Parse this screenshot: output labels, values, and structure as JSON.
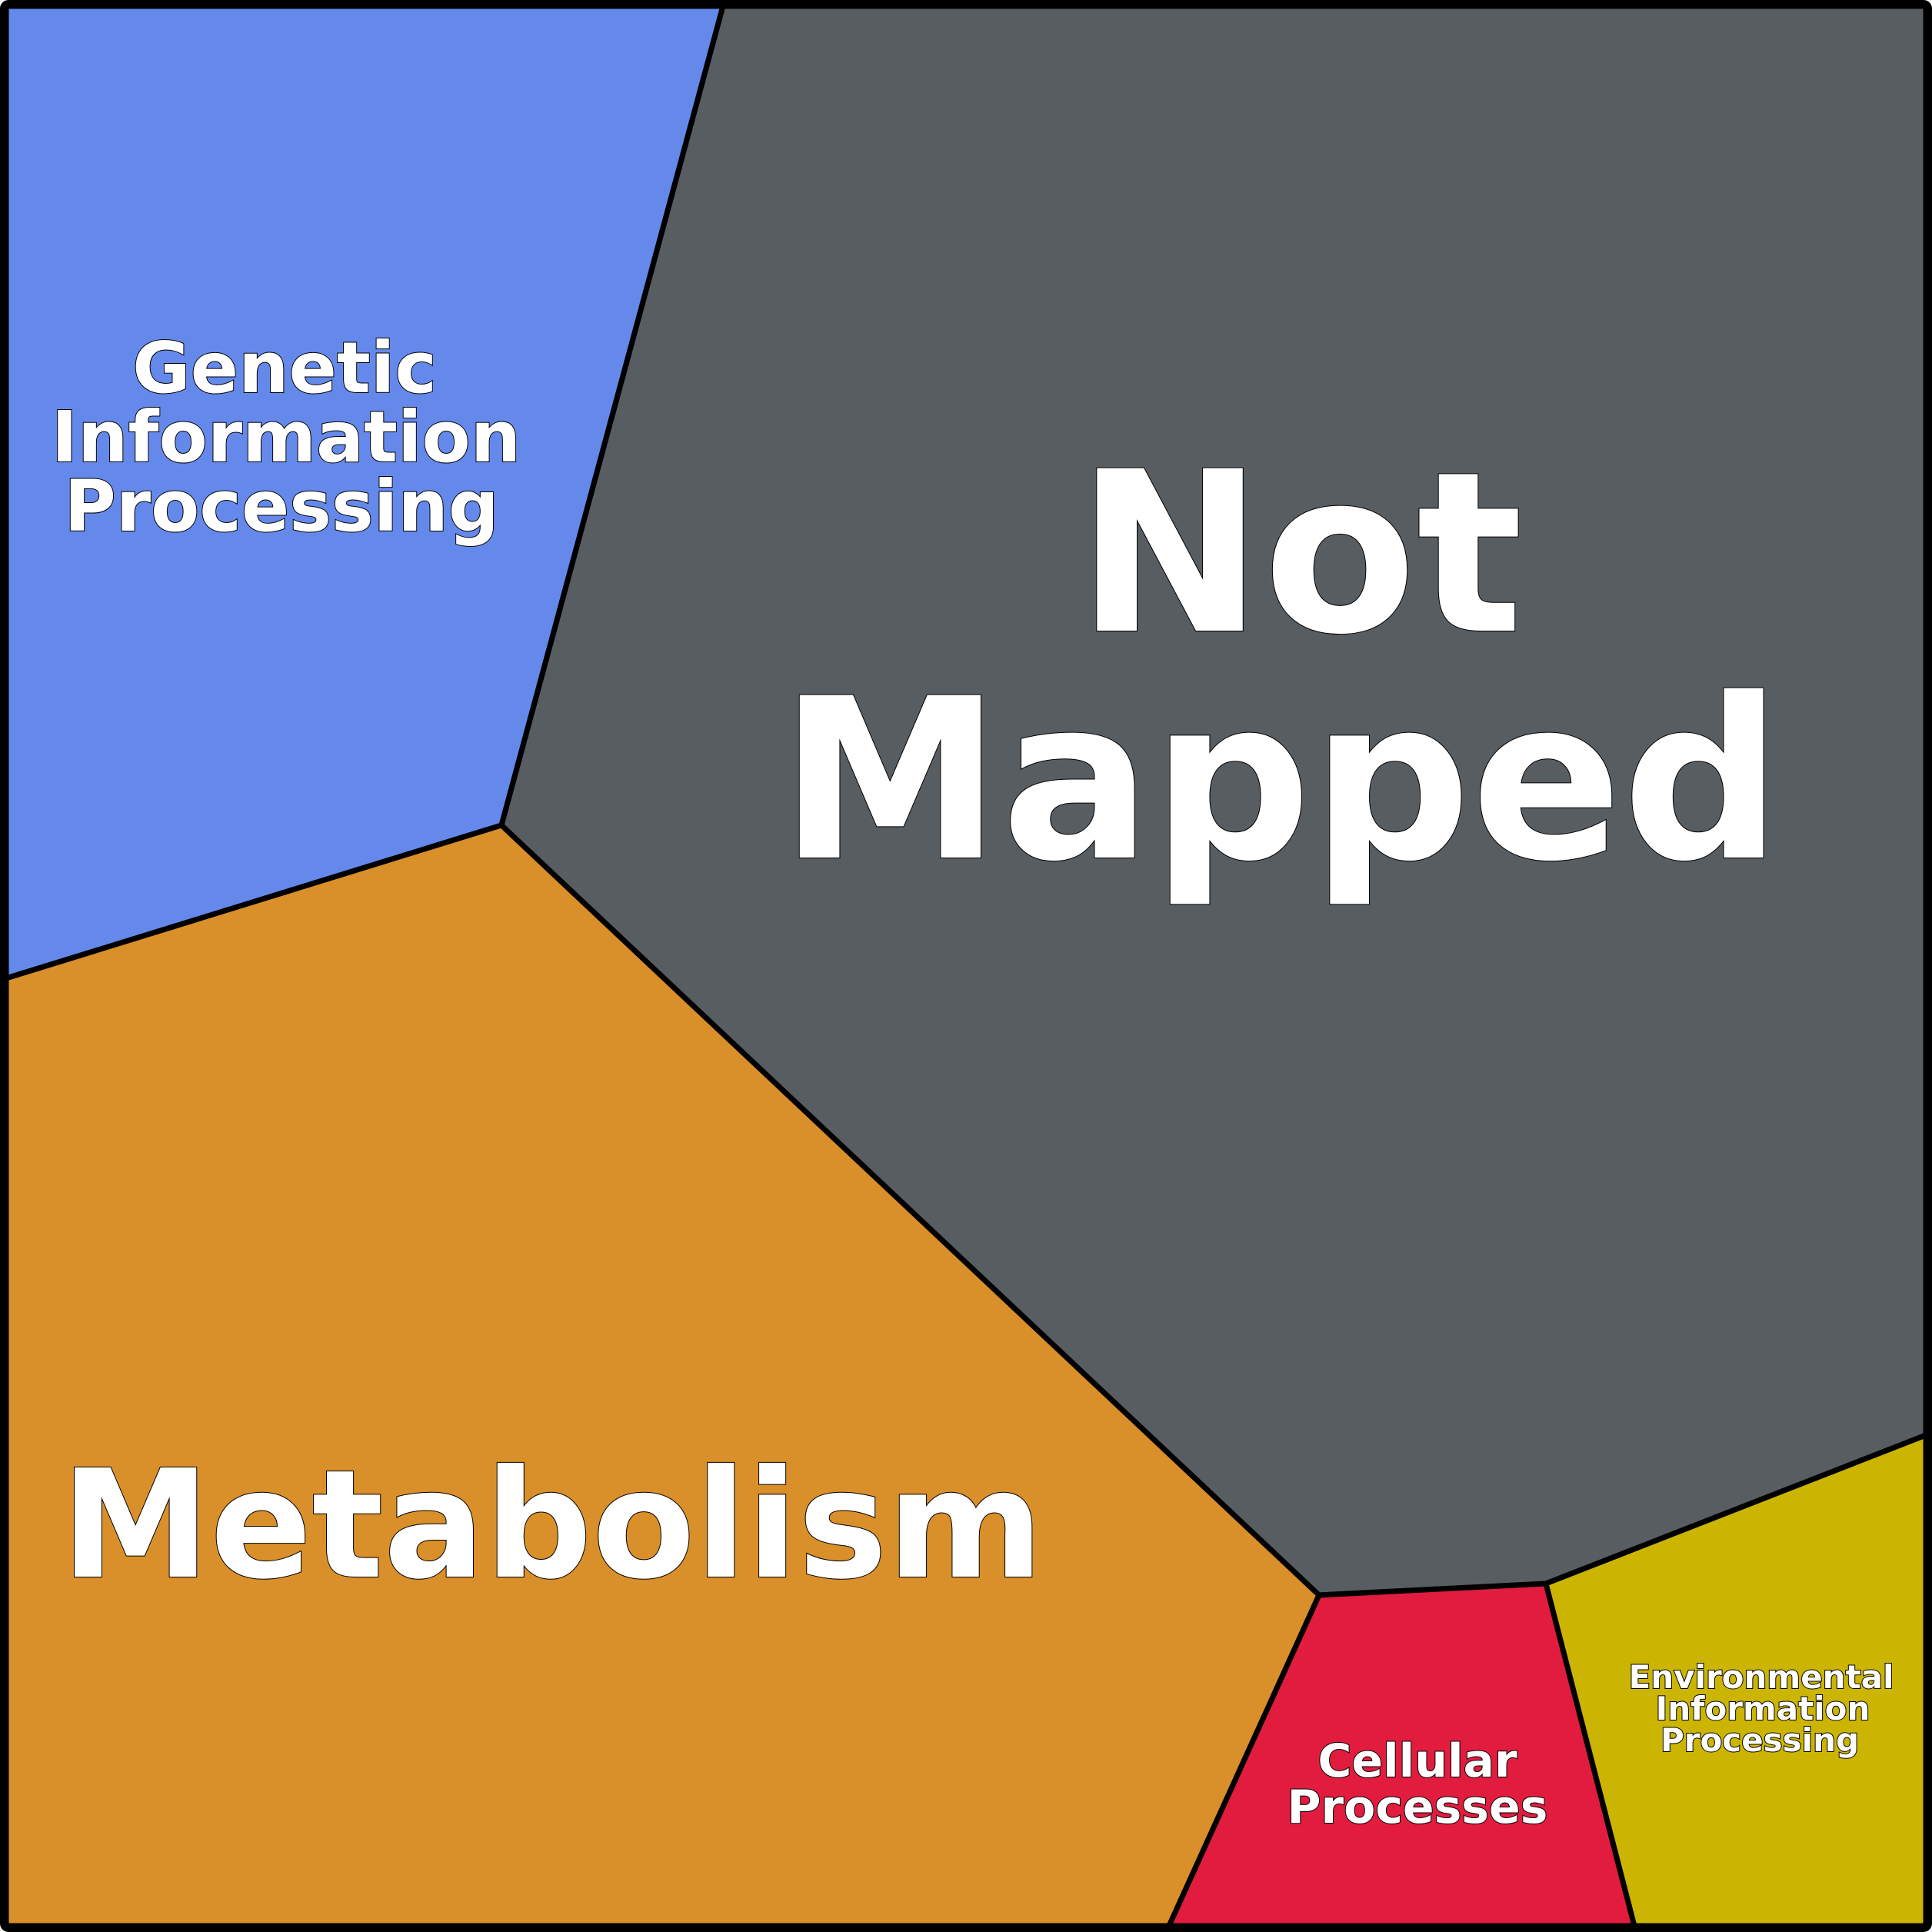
{
  "chart_data": {
    "type": "treemap",
    "title": "",
    "regions": [
      {
        "id": "genetic",
        "name": "Genetic Information Processing",
        "lines": [
          "Genetic",
          "Information",
          "Processing"
        ],
        "color": "#6589EB"
      },
      {
        "id": "notmapped",
        "name": "Not Mapped",
        "lines": [
          "Not",
          "Mapped"
        ],
        "color": "#585D62"
      },
      {
        "id": "metabolism",
        "name": "Metabolism",
        "lines": [
          "Metabolism"
        ],
        "color": "#D98F2A"
      },
      {
        "id": "cellular",
        "name": "Cellular Processes",
        "lines": [
          "Cellular",
          "Processes"
        ],
        "color": "#E11C3F"
      },
      {
        "id": "environmental",
        "name": "Environmental Information Processing",
        "lines": [
          "Environmental",
          "Information",
          "Processing"
        ],
        "color": "#CBB502"
      }
    ]
  }
}
